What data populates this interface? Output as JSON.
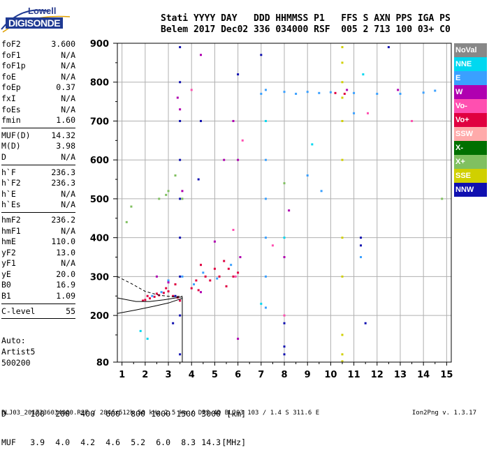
{
  "logo": {
    "brand_top": "Lowell",
    "brand_bottom": "DIGISONDE"
  },
  "header": {
    "line1": "Stati YYYY DAY   DDD HHMMSS P1   FFS S AXN PPS IGA PS",
    "line2": "Belem 2017 Dec02 336 034000 RSF  005 2 713 100 03+ C0"
  },
  "params": {
    "group1": [
      {
        "name": "foF2",
        "value": "3.600"
      },
      {
        "name": "foF1",
        "value": "N/A"
      },
      {
        "name": "foF1p",
        "value": "N/A"
      },
      {
        "name": "foE",
        "value": "N/A"
      },
      {
        "name": "foEp",
        "value": "0.37"
      },
      {
        "name": "fxI",
        "value": "N/A"
      },
      {
        "name": "foEs",
        "value": "N/A"
      },
      {
        "name": "fmin",
        "value": "1.60"
      }
    ],
    "group2": [
      {
        "name": "MUF(D)",
        "value": "14.32"
      },
      {
        "name": "M(D)",
        "value": "3.98"
      },
      {
        "name": "D",
        "value": "N/A"
      }
    ],
    "group3": [
      {
        "name": "h`F",
        "value": "236.3"
      },
      {
        "name": "h`F2",
        "value": "236.3"
      },
      {
        "name": "h`E",
        "value": "N/A"
      },
      {
        "name": "h`Es",
        "value": "N/A"
      }
    ],
    "group4": [
      {
        "name": "hmF2",
        "value": "236.2"
      },
      {
        "name": "hmF1",
        "value": "N/A"
      },
      {
        "name": "hmE",
        "value": "110.0"
      },
      {
        "name": "yF2",
        "value": "13.0"
      },
      {
        "name": "yF1",
        "value": "N/A"
      },
      {
        "name": "yE",
        "value": "20.0"
      },
      {
        "name": "B0",
        "value": "16.9"
      },
      {
        "name": "B1",
        "value": "1.09"
      }
    ],
    "group5": [
      {
        "name": "C-level",
        "value": "55"
      }
    ]
  },
  "autoinfo": {
    "line1": "Auto:",
    "line2": "Artist5",
    "line3": "500200"
  },
  "legend": [
    {
      "label": "NoVal",
      "color": "#888888"
    },
    {
      "label": "NNE",
      "color": "#00d8f0"
    },
    {
      "label": "E",
      "color": "#3aa0ff"
    },
    {
      "label": "W",
      "color": "#b000b0"
    },
    {
      "label": "Vo-",
      "color": "#ff4fb0"
    },
    {
      "label": "Vo+",
      "color": "#e00040"
    },
    {
      "label": "SSW",
      "color": "#ffaaaa"
    },
    {
      "label": "X-",
      "color": "#007000"
    },
    {
      "label": "X+",
      "color": "#80c060"
    },
    {
      "label": "SSE",
      "color": "#d0d000"
    },
    {
      "label": "NNW",
      "color": "#1010b0"
    }
  ],
  "chart_data": {
    "type": "scatter",
    "title": "",
    "xlabel": "",
    "ylabel": "",
    "xlim": [
      0.8,
      15.2
    ],
    "ylim": [
      80,
      900
    ],
    "x_ticks": [
      1,
      2,
      3,
      4,
      5,
      6,
      7,
      8,
      9,
      10,
      11,
      12,
      13,
      14,
      15
    ],
    "y_ticks": [
      80,
      200,
      300,
      400,
      500,
      600,
      700,
      800,
      900
    ],
    "grid": true,
    "legend_position": "right",
    "annotation_vertical_line_mhz": 3.6,
    "series": [
      {
        "name": "Vo+",
        "points": [
          [
            2.0,
            240
          ],
          [
            2.2,
            244
          ],
          [
            2.4,
            248
          ],
          [
            2.6,
            252
          ],
          [
            2.8,
            258
          ],
          [
            3.0,
            262
          ],
          [
            3.2,
            250
          ],
          [
            3.4,
            246
          ],
          [
            3.5,
            238
          ],
          [
            4.0,
            270
          ],
          [
            4.2,
            290
          ],
          [
            4.4,
            330
          ],
          [
            4.6,
            300
          ],
          [
            5.0,
            320
          ],
          [
            5.2,
            300
          ],
          [
            5.4,
            340
          ],
          [
            5.6,
            320
          ],
          [
            5.8,
            300
          ],
          [
            6.0,
            310
          ],
          [
            1.9,
            238
          ],
          [
            2.1,
            250
          ],
          [
            2.5,
            256
          ],
          [
            2.9,
            270
          ],
          [
            3.3,
            280
          ],
          [
            4.3,
            265
          ],
          [
            4.8,
            290
          ],
          [
            5.5,
            275
          ],
          [
            10.2,
            772
          ],
          [
            10.6,
            770
          ]
        ]
      },
      {
        "name": "E",
        "points": [
          [
            2.3,
            250
          ],
          [
            2.7,
            260
          ],
          [
            3.0,
            290
          ],
          [
            3.6,
            300
          ],
          [
            4.1,
            280
          ],
          [
            4.5,
            310
          ],
          [
            5.1,
            295
          ],
          [
            5.7,
            330
          ],
          [
            7.0,
            770
          ],
          [
            7.2,
            780
          ],
          [
            8.0,
            775
          ],
          [
            8.5,
            770
          ],
          [
            9.0,
            775
          ],
          [
            9.5,
            772
          ],
          [
            10.0,
            774
          ],
          [
            11.0,
            772
          ],
          [
            12.0,
            770
          ],
          [
            13.0,
            770
          ],
          [
            14.0,
            773
          ],
          [
            14.5,
            778
          ],
          [
            7.2,
            600
          ],
          [
            7.2,
            500
          ],
          [
            7.2,
            400
          ],
          [
            7.2,
            300
          ],
          [
            7.2,
            220
          ],
          [
            9.0,
            560
          ],
          [
            9.6,
            520
          ],
          [
            11.3,
            350
          ],
          [
            11.0,
            720
          ]
        ]
      },
      {
        "name": "W",
        "points": [
          [
            2.5,
            300
          ],
          [
            3.0,
            285
          ],
          [
            3.5,
            730
          ],
          [
            3.6,
            520
          ],
          [
            4.4,
            260
          ],
          [
            5.0,
            390
          ],
          [
            5.4,
            600
          ],
          [
            5.8,
            700
          ],
          [
            6.0,
            600
          ],
          [
            6.1,
            350
          ],
          [
            6.0,
            140
          ],
          [
            4.4,
            870
          ],
          [
            3.4,
            760
          ],
          [
            8.0,
            350
          ],
          [
            8.2,
            470
          ],
          [
            12.9,
            780
          ],
          [
            10.7,
            780
          ]
        ]
      },
      {
        "name": "X+",
        "points": [
          [
            2.6,
            500
          ],
          [
            3.0,
            520
          ],
          [
            3.3,
            560
          ],
          [
            2.9,
            510
          ],
          [
            3.6,
            500
          ],
          [
            8.0,
            540
          ],
          [
            1.2,
            440
          ],
          [
            1.4,
            480
          ],
          [
            14.8,
            500
          ]
        ]
      },
      {
        "name": "NNW",
        "points": [
          [
            3.5,
            890
          ],
          [
            3.5,
            800
          ],
          [
            3.5,
            700
          ],
          [
            3.5,
            600
          ],
          [
            3.5,
            500
          ],
          [
            3.5,
            400
          ],
          [
            3.5,
            300
          ],
          [
            3.5,
            200
          ],
          [
            3.5,
            100
          ],
          [
            3.3,
            250
          ],
          [
            3.2,
            180
          ],
          [
            4.3,
            550
          ],
          [
            4.4,
            700
          ],
          [
            6.0,
            820
          ],
          [
            7.0,
            870
          ],
          [
            11.3,
            400
          ],
          [
            11.3,
            380
          ],
          [
            11.5,
            180
          ],
          [
            12.5,
            890
          ],
          [
            8.0,
            180
          ],
          [
            8.0,
            120
          ],
          [
            8.0,
            100
          ]
        ]
      },
      {
        "name": "SSE",
        "points": [
          [
            10.5,
            890
          ],
          [
            10.5,
            850
          ],
          [
            10.5,
            800
          ],
          [
            10.5,
            760
          ],
          [
            10.5,
            700
          ],
          [
            10.5,
            600
          ],
          [
            10.5,
            400
          ],
          [
            10.5,
            300
          ],
          [
            10.5,
            150
          ],
          [
            10.5,
            100
          ],
          [
            10.5,
            82
          ]
        ]
      },
      {
        "name": "NNE",
        "points": [
          [
            7.0,
            230
          ],
          [
            8.0,
            400
          ],
          [
            7.2,
            700
          ],
          [
            9.2,
            640
          ],
          [
            1.8,
            160
          ],
          [
            2.1,
            140
          ],
          [
            11.4,
            820
          ]
        ]
      },
      {
        "name": "Vo-",
        "points": [
          [
            4.0,
            780
          ],
          [
            5.8,
            420
          ],
          [
            5.9,
            300
          ],
          [
            6.2,
            650
          ],
          [
            7.5,
            380
          ],
          [
            8.0,
            200
          ],
          [
            11.6,
            720
          ],
          [
            13.5,
            700
          ]
        ]
      }
    ]
  },
  "dmuf": {
    "d_label": "D",
    "d_values": [
      "100",
      "200",
      "400",
      "600",
      "800",
      "1000",
      "1500",
      "3000",
      "[km]"
    ],
    "muf_label": "MUF",
    "muf_values": [
      "3.9",
      "4.0",
      "4.2",
      "4.6",
      "5.2",
      "6.0",
      "8.3",
      "14.3",
      "[MHz]"
    ]
  },
  "footer": "BLJ03_2017336034000.RSF / 284fx512h 50 kHz 2.5 km / DPS-4D BLJ03 103 / 1.4 S 311.6 E",
  "version": "Ion2Png v. 1.3.17"
}
